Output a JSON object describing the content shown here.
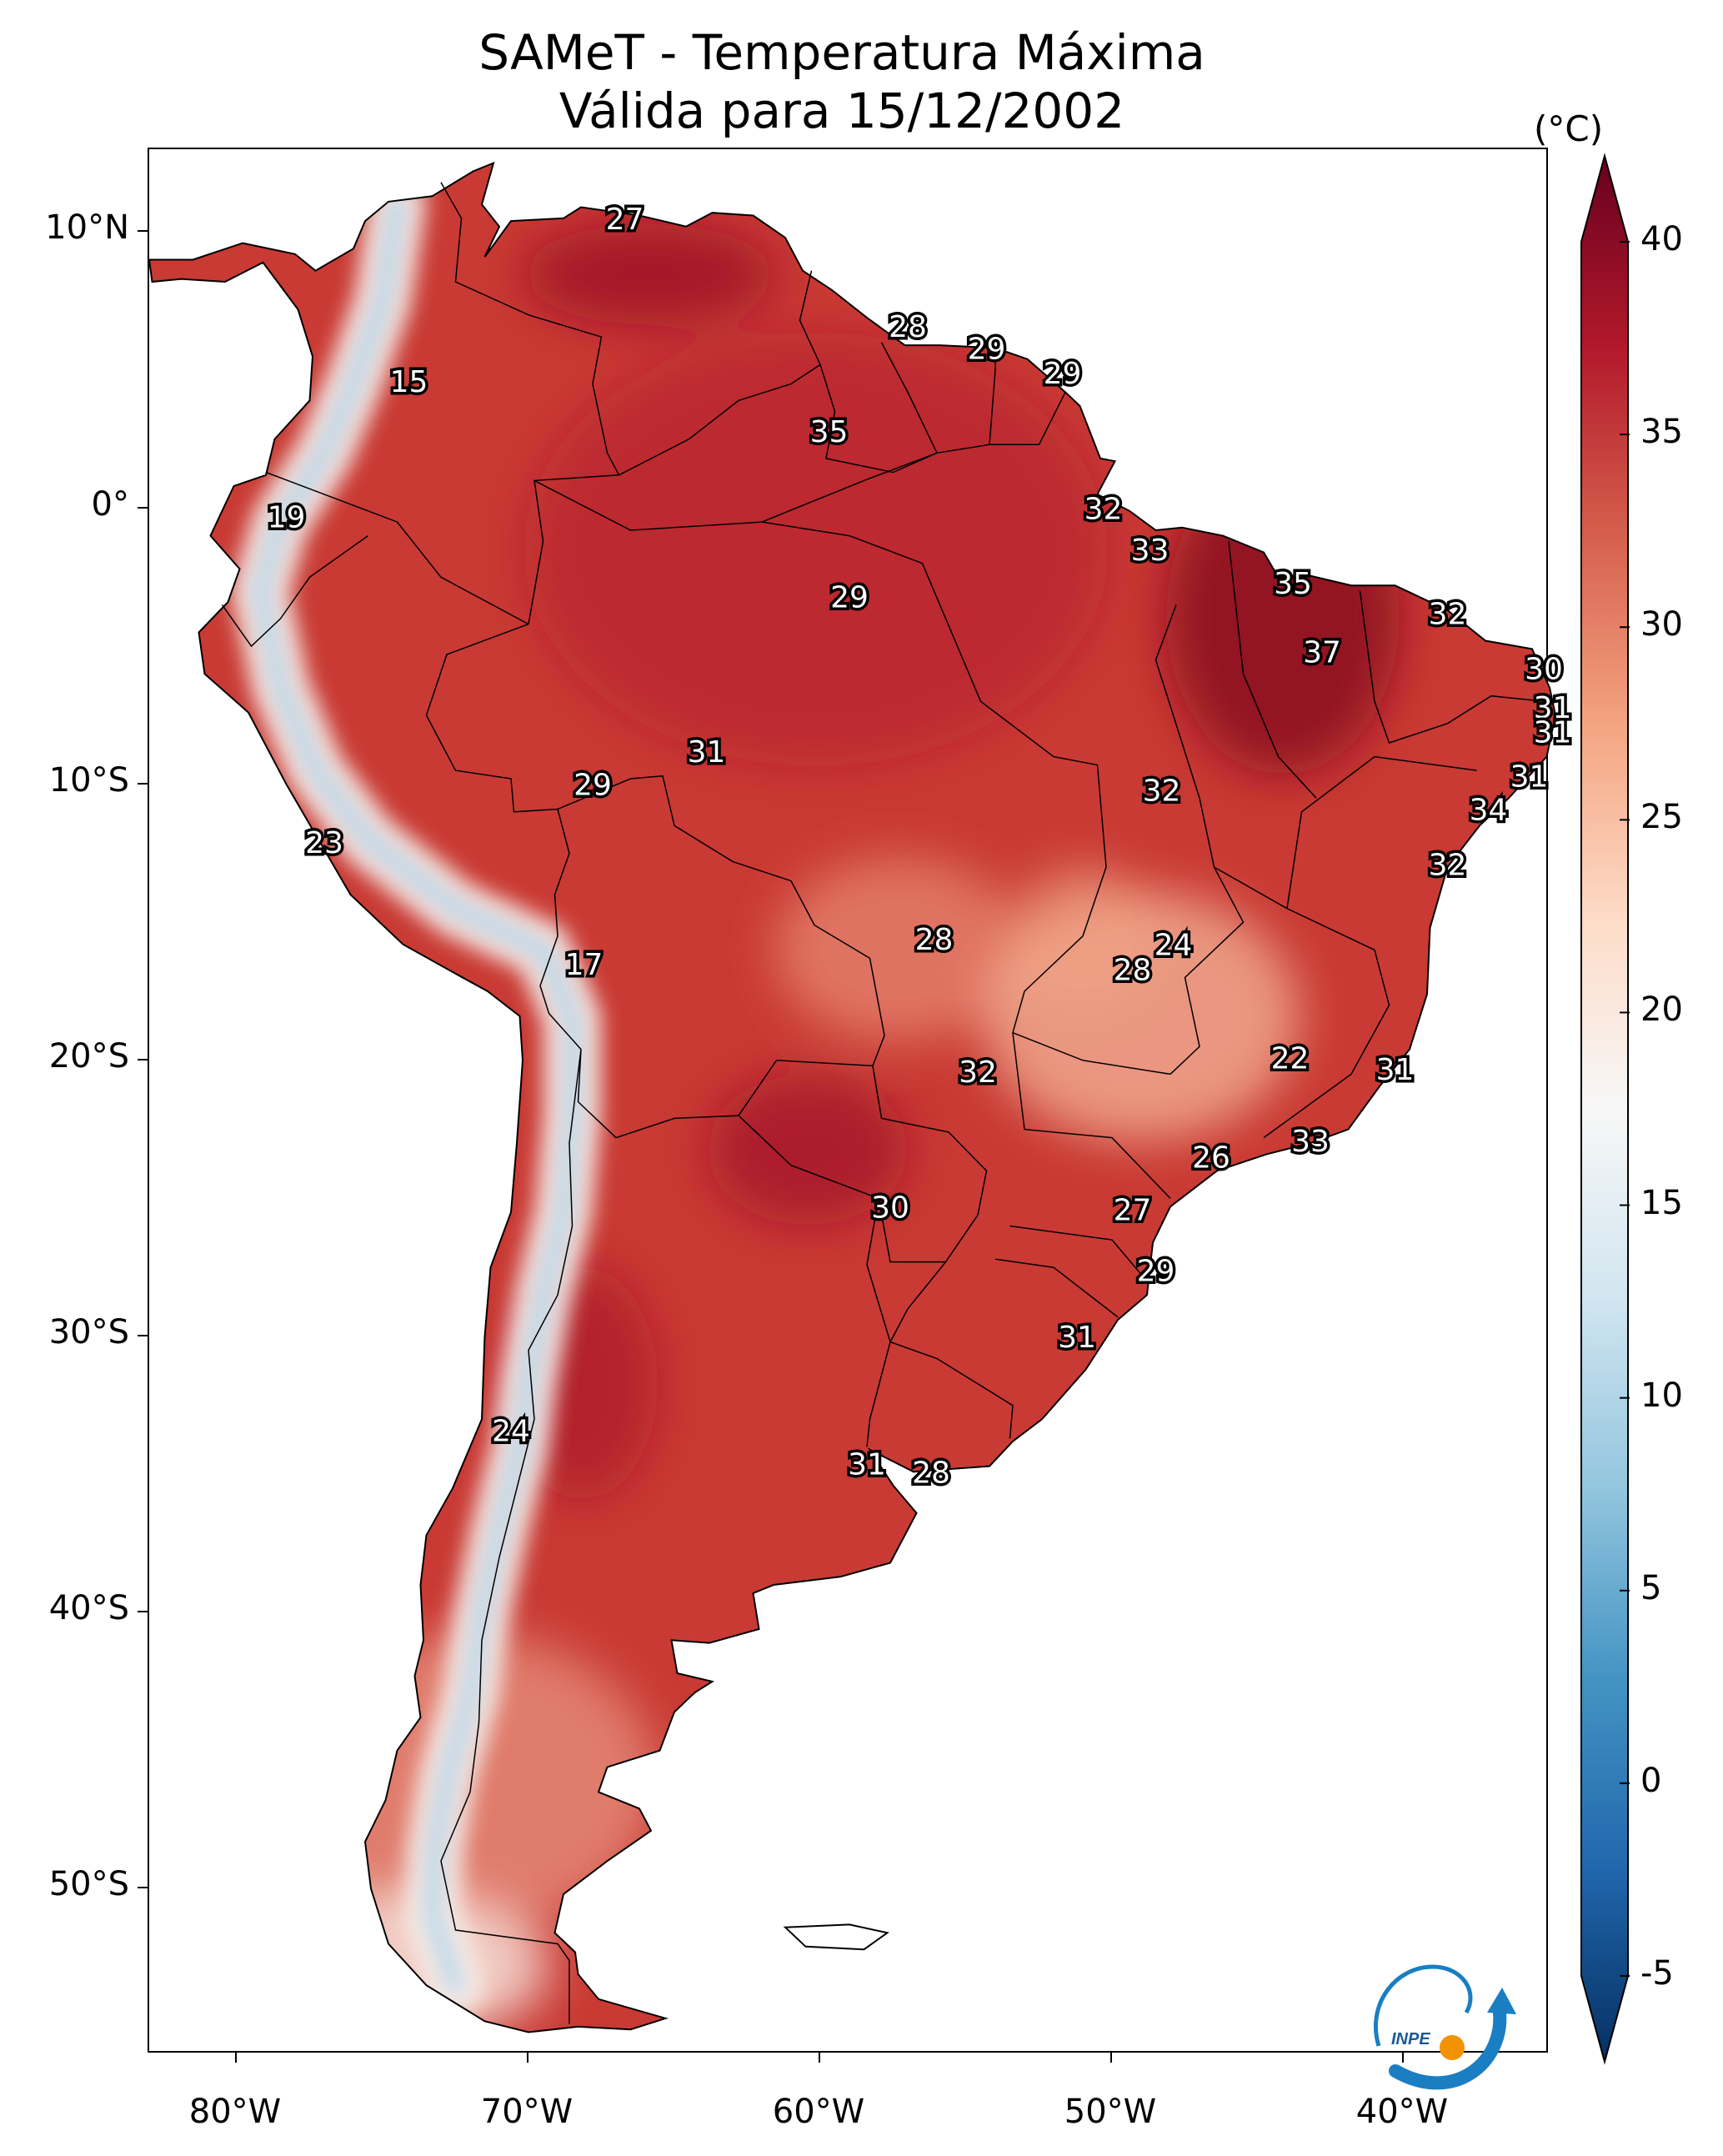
{
  "title": {
    "line1": "SAMeT - Temperatura Máxima",
    "line2": "Válida para 15/12/2002"
  },
  "axes": {
    "lat_ticks": [
      {
        "value": 10,
        "label": "10°N"
      },
      {
        "value": 0,
        "label": "0°"
      },
      {
        "value": -10,
        "label": "10°S"
      },
      {
        "value": -20,
        "label": "20°S"
      },
      {
        "value": -30,
        "label": "30°S"
      },
      {
        "value": -40,
        "label": "40°S"
      },
      {
        "value": -50,
        "label": "50°S"
      }
    ],
    "lon_ticks": [
      {
        "value": -80,
        "label": "80°W"
      },
      {
        "value": -70,
        "label": "70°W"
      },
      {
        "value": -60,
        "label": "60°W"
      },
      {
        "value": -50,
        "label": "50°W"
      },
      {
        "value": -40,
        "label": "40°W"
      }
    ],
    "lon_range": [
      -83,
      -35
    ],
    "lat_range": [
      -56,
      13
    ]
  },
  "colorbar": {
    "unit": "(°C)",
    "min": -5,
    "max": 40,
    "ticks": [
      40,
      35,
      30,
      25,
      20,
      15,
      10,
      5,
      0,
      -5
    ],
    "extend": "both",
    "colormap": "RdBu_r",
    "colors": [
      "#053061",
      "#2166ac",
      "#4393c3",
      "#92c5de",
      "#d1e5f0",
      "#f7f7f7",
      "#fddbc7",
      "#f4a582",
      "#d6604d",
      "#b2182b",
      "#67001f"
    ]
  },
  "map": {
    "ocean_color": "#ffffff",
    "border_color": "#000000",
    "city_labels": [
      {
        "value": "27",
        "lon": -66.7,
        "lat": 10.5
      },
      {
        "value": "28",
        "lon": -57.0,
        "lat": 6.6
      },
      {
        "value": "29",
        "lon": -54.3,
        "lat": 5.8
      },
      {
        "value": "29",
        "lon": -51.7,
        "lat": 4.9
      },
      {
        "value": "15",
        "lon": -74.1,
        "lat": 4.6
      },
      {
        "value": "35",
        "lon": -59.7,
        "lat": 2.8
      },
      {
        "value": "19",
        "lon": -78.3,
        "lat": -0.3
      },
      {
        "value": "32",
        "lon": -50.3,
        "lat": 0.0
      },
      {
        "value": "33",
        "lon": -48.7,
        "lat": -1.5
      },
      {
        "value": "35",
        "lon": -43.8,
        "lat": -2.7
      },
      {
        "value": "29",
        "lon": -59.0,
        "lat": -3.2
      },
      {
        "value": "32",
        "lon": -38.5,
        "lat": -3.8
      },
      {
        "value": "37",
        "lon": -42.8,
        "lat": -5.2
      },
      {
        "value": "30",
        "lon": -35.2,
        "lat": -5.8
      },
      {
        "value": "31",
        "lon": -34.9,
        "lat": -7.2
      },
      {
        "value": "31",
        "lon": -34.9,
        "lat": -8.1
      },
      {
        "value": "31",
        "lon": -35.7,
        "lat": -9.7
      },
      {
        "value": "31",
        "lon": -63.9,
        "lat": -8.8
      },
      {
        "value": "29",
        "lon": -67.8,
        "lat": -10.0
      },
      {
        "value": "32",
        "lon": -48.3,
        "lat": -10.2
      },
      {
        "value": "34",
        "lon": -37.1,
        "lat": -10.9
      },
      {
        "value": "23",
        "lon": -77.0,
        "lat": -12.1
      },
      {
        "value": "32",
        "lon": -38.5,
        "lat": -12.9
      },
      {
        "value": "24",
        "lon": -47.9,
        "lat": -15.8
      },
      {
        "value": "28",
        "lon": -56.1,
        "lat": -15.6
      },
      {
        "value": "28",
        "lon": -49.3,
        "lat": -16.7
      },
      {
        "value": "17",
        "lon": -68.1,
        "lat": -16.5
      },
      {
        "value": "22",
        "lon": -43.9,
        "lat": -19.9
      },
      {
        "value": "31",
        "lon": -40.3,
        "lat": -20.3
      },
      {
        "value": "32",
        "lon": -54.6,
        "lat": -20.4
      },
      {
        "value": "33",
        "lon": -43.2,
        "lat": -22.9
      },
      {
        "value": "26",
        "lon": -46.6,
        "lat": -23.5
      },
      {
        "value": "30",
        "lon": -57.6,
        "lat": -25.3
      },
      {
        "value": "27",
        "lon": -49.3,
        "lat": -25.4
      },
      {
        "value": "29",
        "lon": -48.5,
        "lat": -27.6
      },
      {
        "value": "31",
        "lon": -51.2,
        "lat": -30.0
      },
      {
        "value": "24",
        "lon": -70.6,
        "lat": -33.4
      },
      {
        "value": "31",
        "lon": -58.4,
        "lat": -34.6
      },
      {
        "value": "28",
        "lon": -56.2,
        "lat": -34.9
      }
    ]
  },
  "logo": {
    "text": "INPE"
  }
}
